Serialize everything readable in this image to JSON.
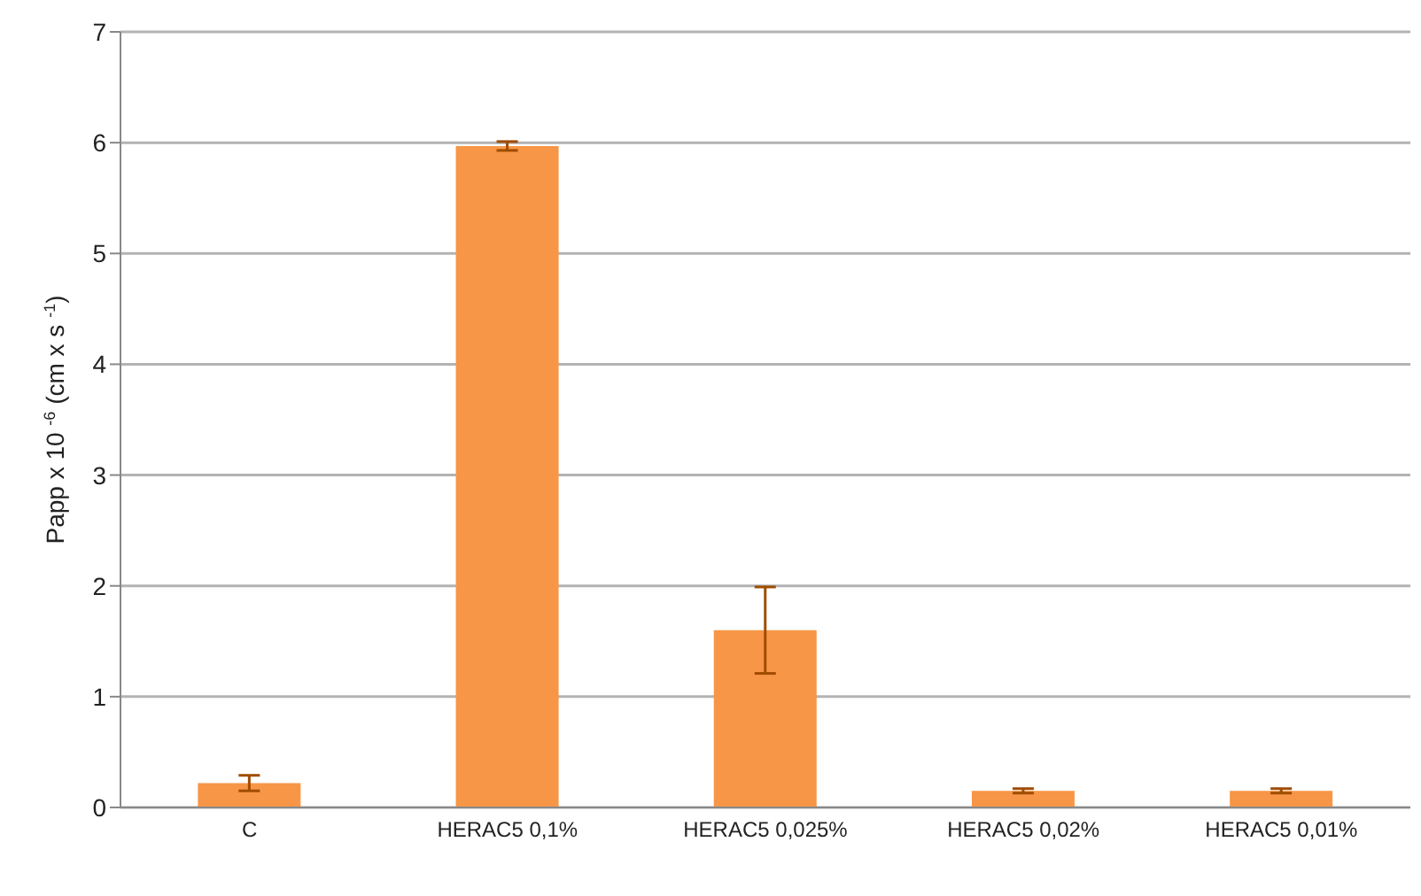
{
  "chart_data": {
    "type": "bar",
    "ylabel": "Papp x 10 $^{-6}$ (cm x s $^{-1}$)",
    "categories": [
      "C",
      "HERAC5 0,1%",
      "HERAC5 0,025%",
      "HERAC5 0,02%",
      "HERAC5 0,01%"
    ],
    "values": [
      0.22,
      5.97,
      1.6,
      0.15,
      0.15
    ],
    "errors": [
      0.07,
      0.04,
      0.39,
      0.02,
      0.02
    ],
    "color": "#f79646",
    "ylim": [
      0,
      7
    ],
    "yticks": [
      0,
      1,
      2,
      3,
      4,
      5,
      6,
      7
    ],
    "grid": "y"
  }
}
